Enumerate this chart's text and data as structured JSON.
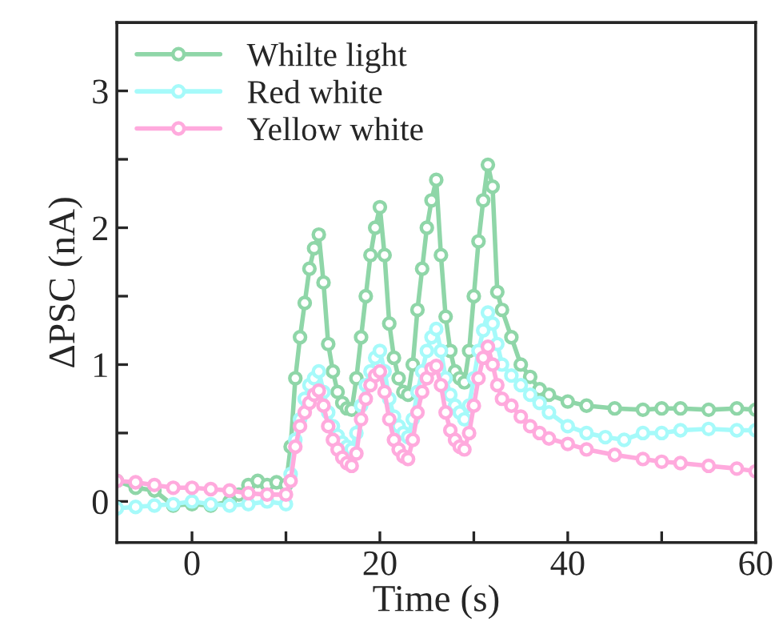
{
  "chart_data": {
    "type": "line",
    "xlabel": "Time (s)",
    "ylabel": "ΔPSC (nA)",
    "xlim": [
      -8,
      60
    ],
    "ylim": [
      -0.3,
      3.5
    ],
    "xticks": [
      0,
      {
        "value": 10,
        "label": null
      },
      20,
      {
        "value": 30,
        "label": null
      },
      40,
      {
        "value": 50,
        "label": null
      },
      60
    ],
    "yticks": [
      0,
      {
        "value": 0.5,
        "label": null
      },
      1,
      {
        "value": 1.5,
        "label": null
      },
      2,
      {
        "value": 2.5,
        "label": null
      },
      3
    ],
    "legend": "top left",
    "marker": "circle",
    "line_style": "solid",
    "grid": false,
    "series": [
      {
        "name": "Whilte light",
        "color": "#8fd6a8",
        "x": [
          -8,
          -6,
          -4,
          -2,
          0,
          2,
          4,
          5,
          6,
          7,
          8,
          9,
          10,
          10.5,
          11,
          11.5,
          12,
          12.5,
          13,
          13.5,
          14,
          14.5,
          15,
          15.5,
          16,
          16.5,
          17,
          17.5,
          18,
          18.5,
          19,
          19.5,
          20,
          20.5,
          21,
          21.5,
          22,
          22.5,
          23,
          23.5,
          24,
          24.5,
          25,
          25.5,
          26,
          26.5,
          27,
          27.5,
          28,
          28.5,
          29,
          29.5,
          30,
          30.5,
          31,
          31.5,
          32,
          32.5,
          33,
          34,
          35,
          36,
          37,
          38,
          40,
          42,
          45,
          48,
          50,
          52,
          55,
          58,
          60
        ],
        "values": [
          0.15,
          0.1,
          0.08,
          -0.03,
          -0.02,
          -0.03,
          0.0,
          0.05,
          0.12,
          0.15,
          0.12,
          0.14,
          0.12,
          0.4,
          0.9,
          1.2,
          1.45,
          1.7,
          1.85,
          1.95,
          1.6,
          1.15,
          0.95,
          0.8,
          0.72,
          0.68,
          0.67,
          0.9,
          1.2,
          1.5,
          1.8,
          2.0,
          2.15,
          1.8,
          1.3,
          1.05,
          0.9,
          0.8,
          0.78,
          1.0,
          1.4,
          1.7,
          2.0,
          2.2,
          2.35,
          1.8,
          1.35,
          1.1,
          0.95,
          0.9,
          0.87,
          1.1,
          1.5,
          1.9,
          2.2,
          2.46,
          2.3,
          1.53,
          1.4,
          1.2,
          1.0,
          0.91,
          0.82,
          0.78,
          0.73,
          0.7,
          0.68,
          0.67,
          0.68,
          0.68,
          0.67,
          0.68,
          0.67
        ]
      },
      {
        "name": "Red white",
        "color": "#a6fafa",
        "x": [
          -8,
          -6,
          -4,
          -2,
          0,
          2,
          4,
          6,
          8,
          10,
          10.5,
          11,
          11.5,
          12,
          12.5,
          13,
          13.5,
          14,
          14.5,
          15,
          15.5,
          16,
          16.5,
          17,
          17.5,
          18,
          18.5,
          19,
          19.5,
          20,
          20.5,
          21,
          21.5,
          22,
          22.5,
          23,
          23.5,
          24,
          24.5,
          25,
          25.5,
          26,
          26.5,
          27,
          27.5,
          28,
          28.5,
          29,
          29.5,
          30,
          30.5,
          31,
          31.5,
          32,
          32.5,
          33,
          34,
          35,
          36,
          37,
          38,
          40,
          42,
          44,
          46,
          48,
          50,
          52,
          55,
          58,
          60
        ],
        "values": [
          -0.05,
          -0.04,
          -0.03,
          -0.02,
          0.0,
          -0.02,
          -0.03,
          -0.02,
          0.0,
          -0.02,
          0.2,
          0.45,
          0.6,
          0.75,
          0.85,
          0.9,
          0.95,
          0.8,
          0.65,
          0.55,
          0.48,
          0.43,
          0.4,
          0.38,
          0.5,
          0.7,
          0.85,
          0.95,
          1.05,
          1.1,
          0.95,
          0.75,
          0.62,
          0.55,
          0.5,
          0.47,
          0.6,
          0.8,
          0.95,
          1.1,
          1.2,
          1.26,
          1.1,
          0.9,
          0.78,
          0.7,
          0.65,
          0.6,
          0.7,
          0.9,
          1.1,
          1.25,
          1.38,
          1.3,
          1.15,
          1.0,
          0.92,
          0.85,
          0.78,
          0.72,
          0.65,
          0.55,
          0.5,
          0.47,
          0.45,
          0.5,
          0.5,
          0.52,
          0.53,
          0.52,
          0.52
        ]
      },
      {
        "name": "Yellow white",
        "color": "#ffaadd",
        "x": [
          -8,
          -6,
          -4,
          -2,
          0,
          2,
          4,
          6,
          8,
          10,
          10.5,
          11,
          11.5,
          12,
          12.5,
          13,
          13.5,
          14,
          14.5,
          15,
          15.5,
          16,
          16.5,
          17,
          17.5,
          18,
          18.5,
          19,
          19.5,
          20,
          20.5,
          21,
          21.5,
          22,
          22.5,
          23,
          23.5,
          24,
          24.5,
          25,
          25.5,
          26,
          26.5,
          27,
          27.5,
          28,
          28.5,
          29,
          29.5,
          30,
          30.5,
          31,
          31.5,
          32,
          32.5,
          33,
          34,
          35,
          36,
          37,
          38,
          40,
          42,
          45,
          48,
          50,
          52,
          55,
          58,
          60
        ],
        "values": [
          0.15,
          0.14,
          0.12,
          0.1,
          0.1,
          0.09,
          0.08,
          0.06,
          0.05,
          0.05,
          0.15,
          0.4,
          0.55,
          0.65,
          0.72,
          0.78,
          0.81,
          0.7,
          0.55,
          0.45,
          0.38,
          0.32,
          0.28,
          0.26,
          0.35,
          0.6,
          0.75,
          0.85,
          0.92,
          0.95,
          0.8,
          0.6,
          0.45,
          0.38,
          0.33,
          0.31,
          0.45,
          0.65,
          0.8,
          0.9,
          0.97,
          0.99,
          0.85,
          0.65,
          0.52,
          0.45,
          0.4,
          0.38,
          0.5,
          0.7,
          0.9,
          1.05,
          1.13,
          1.0,
          0.85,
          0.75,
          0.7,
          0.62,
          0.55,
          0.5,
          0.46,
          0.42,
          0.38,
          0.34,
          0.31,
          0.29,
          0.28,
          0.26,
          0.24,
          0.22
        ]
      }
    ]
  }
}
